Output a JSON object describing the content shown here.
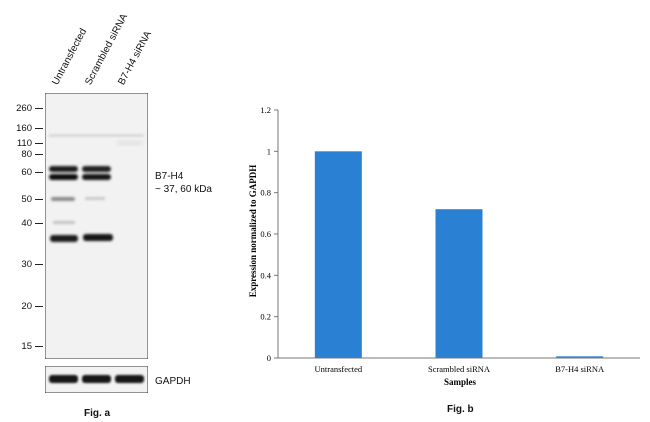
{
  "blot": {
    "lanes": [
      "Untransfected",
      "Scrambled siRNA",
      "B7-H4 siRNA"
    ],
    "markers": [
      "260",
      "160",
      "110",
      "80",
      "60",
      "50",
      "40",
      "30",
      "20",
      "15"
    ],
    "target_label_line1": "B7-H4",
    "target_label_line2": "~ 37, 60 kDa",
    "loading_label": "GAPDH",
    "caption": "Fig. a"
  },
  "chart_data": {
    "type": "bar",
    "categories": [
      "Untransfected",
      "Scrambled siRNA",
      "B7-H4 siRNA"
    ],
    "values": [
      1.0,
      0.72,
      0.008
    ],
    "xlabel": "Samples",
    "ylabel": "Expression normalized to GAPDH",
    "ylim": [
      0,
      1.2
    ],
    "yticks": [
      0,
      0.2,
      0.4,
      0.6,
      0.8,
      1,
      1.2
    ],
    "ytick_labels": [
      "0",
      "0.2",
      "0.4",
      "0.6",
      "0.8",
      "1",
      "1.2"
    ],
    "bar_color": "#2a80d2",
    "grid": false,
    "caption": "Fig. b"
  }
}
